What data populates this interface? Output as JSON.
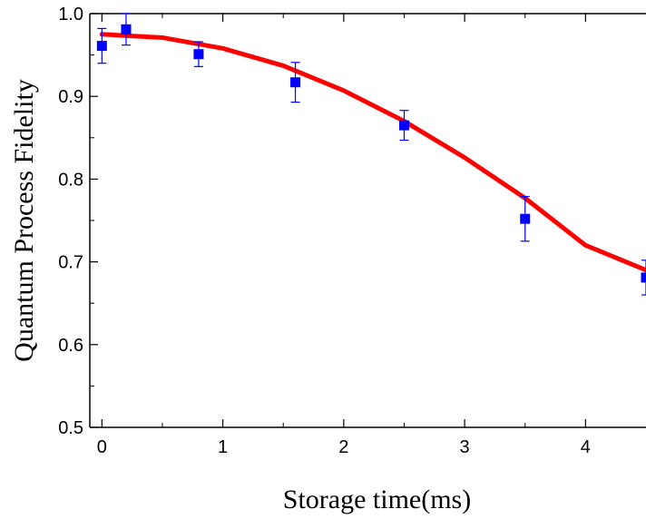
{
  "chart_data": {
    "type": "scatter",
    "title": "",
    "xlabel": "Storage time(ms)",
    "ylabel": "Quantum Process Fidelity",
    "xlim": [
      -0.1,
      4.5
    ],
    "ylim": [
      0.5,
      1.0
    ],
    "x_ticks": [
      0,
      1,
      2,
      3,
      4
    ],
    "x_tick_labels": [
      "0",
      "1",
      "2",
      "3",
      "4"
    ],
    "y_ticks": [
      0.5,
      0.6,
      0.7,
      0.8,
      0.9,
      1.0
    ],
    "y_tick_labels": [
      "0.5",
      "0.6",
      "0.7",
      "0.8",
      "0.9",
      "1.0"
    ],
    "grid": false,
    "series": [
      {
        "kind": "points_with_errorbars",
        "color": "#0000ff",
        "marker": "square",
        "x": [
          0.0,
          0.2,
          0.8,
          1.6,
          2.5,
          3.5,
          4.5
        ],
        "y": [
          0.961,
          0.981,
          0.951,
          0.917,
          0.865,
          0.752,
          0.681
        ],
        "yerr": [
          0.021,
          0.019,
          0.015,
          0.024,
          0.018,
          0.027,
          0.021
        ]
      },
      {
        "kind": "fit_curve",
        "color": "#ff0000",
        "x": [
          0.0,
          0.5,
          1.0,
          1.5,
          2.0,
          2.5,
          3.0,
          3.5,
          4.0,
          4.5
        ],
        "y": [
          0.975,
          0.971,
          0.958,
          0.937,
          0.907,
          0.87,
          0.826,
          0.777,
          0.72,
          0.69
        ]
      }
    ]
  }
}
